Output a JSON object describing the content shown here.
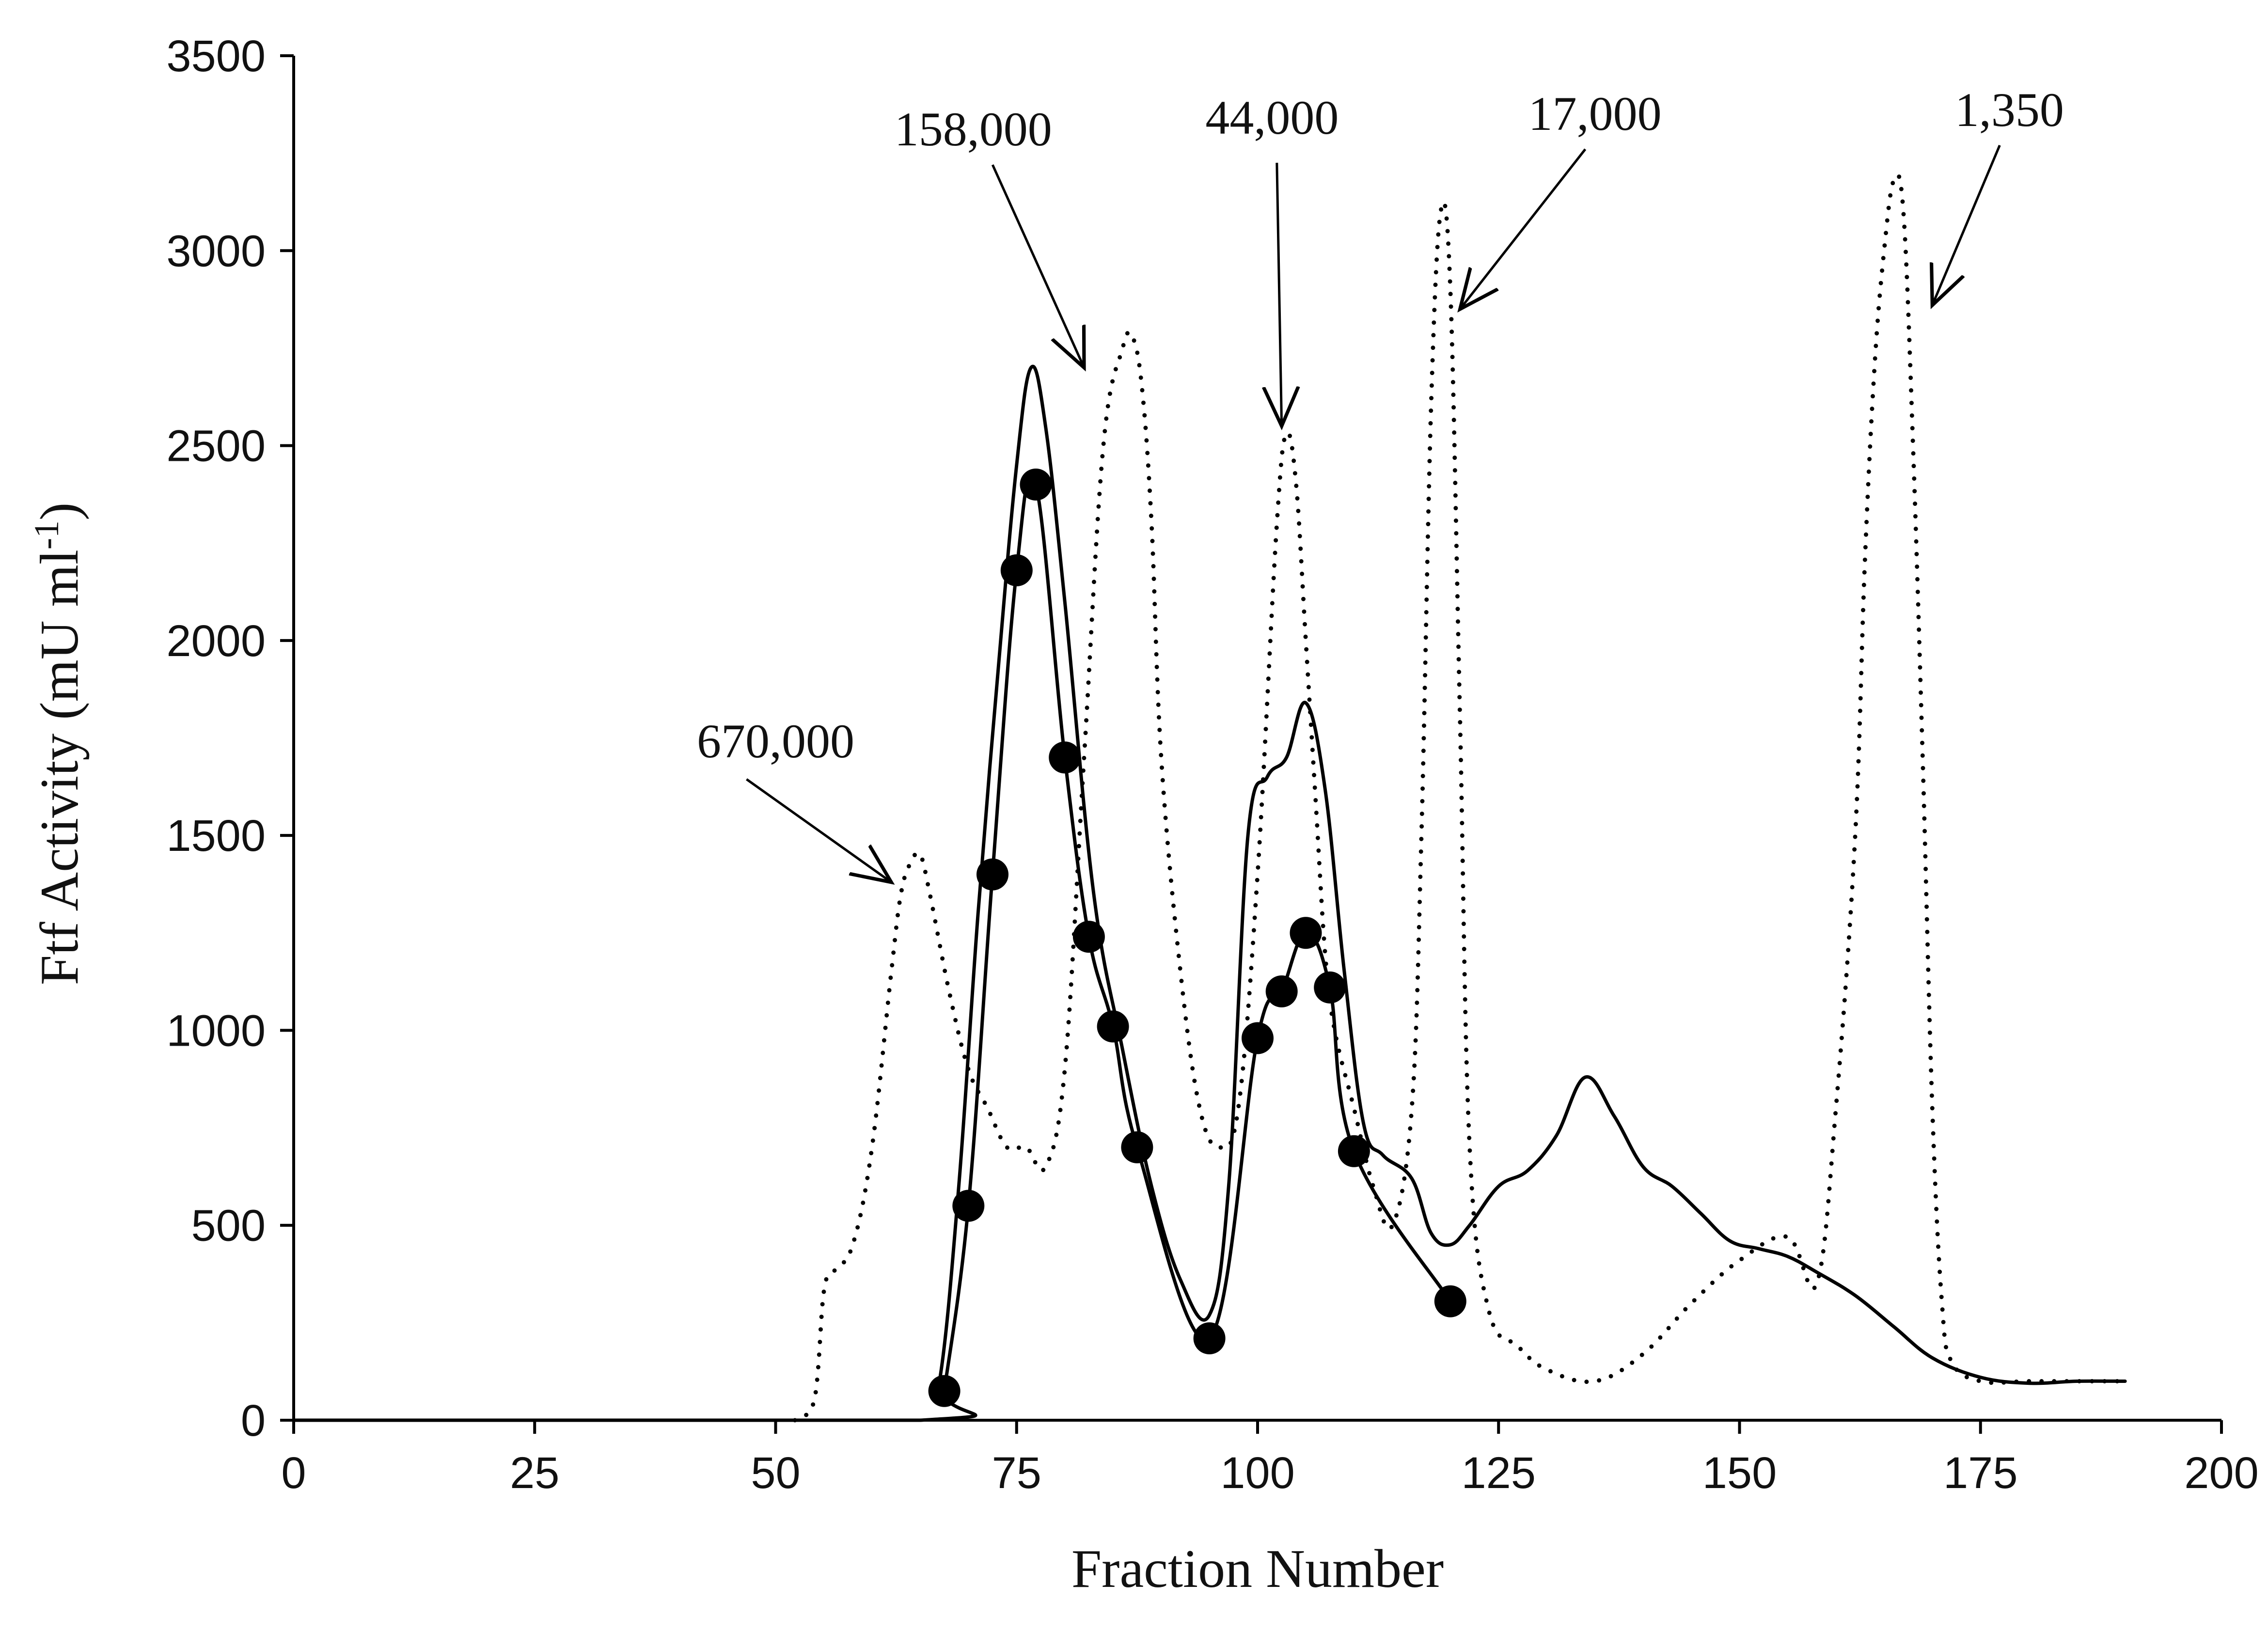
{
  "chart_data": {
    "type": "line",
    "xlabel": "Fraction Number",
    "ylabel": "Ftf Activity (mU ml-1)",
    "ylabel_parts": {
      "main": "Ftf Activity (mU ml",
      "sup": "-1",
      "end": ")"
    },
    "xlim": [
      0,
      200
    ],
    "ylim": [
      0,
      3500
    ],
    "xticks": [
      0,
      25,
      50,
      75,
      100,
      125,
      150,
      175,
      200
    ],
    "yticks": [
      0,
      500,
      1000,
      1500,
      2000,
      2500,
      3000,
      3500
    ],
    "xtick_labels": [
      "0",
      "25",
      "50",
      "75",
      "100",
      "125",
      "150",
      "175",
      "200"
    ],
    "ytick_labels": [
      "0",
      "500",
      "1000",
      "1500",
      "2000",
      "2500",
      "3000",
      "3500"
    ],
    "grid": false,
    "series": [
      {
        "style": "solid-with-markers",
        "color": "#000000",
        "x": [
          67.5,
          70,
          72.5,
          75,
          77,
          80,
          82.5,
          85,
          87.5,
          95,
          100,
          102.5,
          105,
          107.5,
          110,
          120
        ],
        "y": [
          75,
          550,
          1400,
          2180,
          2400,
          1700,
          1240,
          1010,
          700,
          210,
          980,
          1100,
          1250,
          1110,
          690,
          305
        ]
      },
      {
        "style": "solid",
        "color": "#000000",
        "x": [
          0,
          65,
          67,
          69,
          71,
          73,
          75,
          76.5,
          78,
          80,
          83,
          86,
          89,
          92,
          95,
          97,
          99,
          101,
          103,
          105,
          107,
          109,
          111,
          113,
          116,
          118,
          120,
          122,
          125,
          128,
          131,
          134,
          137,
          140,
          143,
          146,
          149,
          152,
          155,
          158,
          162,
          166,
          170,
          175,
          180,
          185,
          190
        ],
        "y": [
          0,
          0,
          100,
          600,
          1300,
          1900,
          2450,
          2700,
          2550,
          2100,
          1350,
          950,
          600,
          360,
          270,
          600,
          1500,
          1650,
          1700,
          1840,
          1620,
          1150,
          760,
          680,
          620,
          480,
          450,
          500,
          600,
          640,
          730,
          880,
          780,
          650,
          600,
          530,
          460,
          440,
          420,
          380,
          320,
          240,
          160,
          110,
          95,
          100,
          100
        ]
      },
      {
        "style": "dotted",
        "color": "#000000",
        "x": [
          52,
          54,
          55,
          56,
          58,
          60,
          62,
          63,
          64,
          65,
          66,
          68,
          70,
          72,
          74,
          76,
          78,
          80,
          82,
          84,
          86,
          87,
          88,
          89,
          90,
          92,
          94,
          96,
          98,
          100,
          102,
          103,
          104,
          105,
          106,
          107,
          108,
          110,
          112,
          114,
          116,
          117,
          118,
          119,
          120,
          121,
          122,
          124,
          127,
          130,
          135,
          140,
          145,
          150,
          155,
          158,
          160,
          162,
          163,
          164,
          165,
          166,
          167,
          168,
          169,
          170,
          171,
          172,
          175,
          180,
          185,
          190
        ],
        "y": [
          0,
          50,
          330,
          380,
          450,
          700,
          1150,
          1350,
          1430,
          1450,
          1350,
          1100,
          900,
          800,
          700,
          700,
          650,
          900,
          1700,
          2500,
          2750,
          2780,
          2650,
          2300,
          1700,
          1150,
          800,
          700,
          800,
          1400,
          2300,
          2530,
          2400,
          2000,
          1600,
          1200,
          1000,
          800,
          600,
          500,
          800,
          1500,
          2600,
          3100,
          2900,
          1800,
          700,
          280,
          190,
          130,
          100,
          170,
          300,
          410,
          470,
          350,
          800,
          1500,
          2200,
          2700,
          3000,
          3180,
          3100,
          2500,
          1700,
          800,
          300,
          150,
          100,
          100,
          100,
          100
        ]
      }
    ],
    "annotations": [
      {
        "text": "670,000",
        "label_x": 50,
        "label_y": 1700,
        "tip_x": 62,
        "tip_y": 1380
      },
      {
        "text": "158,000",
        "label_x": 70.5,
        "label_y": 3270,
        "tip_x": 82,
        "tip_y": 2700
      },
      {
        "text": "44,000",
        "label_x": 101.5,
        "label_y": 3300,
        "tip_x": 102.5,
        "tip_y": 2550
      },
      {
        "text": "17,000",
        "label_x": 135,
        "label_y": 3310,
        "tip_x": 121,
        "tip_y": 2850
      },
      {
        "text": "1,350",
        "label_x": 178,
        "label_y": 3320,
        "tip_x": 170,
        "tip_y": 2860
      }
    ]
  }
}
